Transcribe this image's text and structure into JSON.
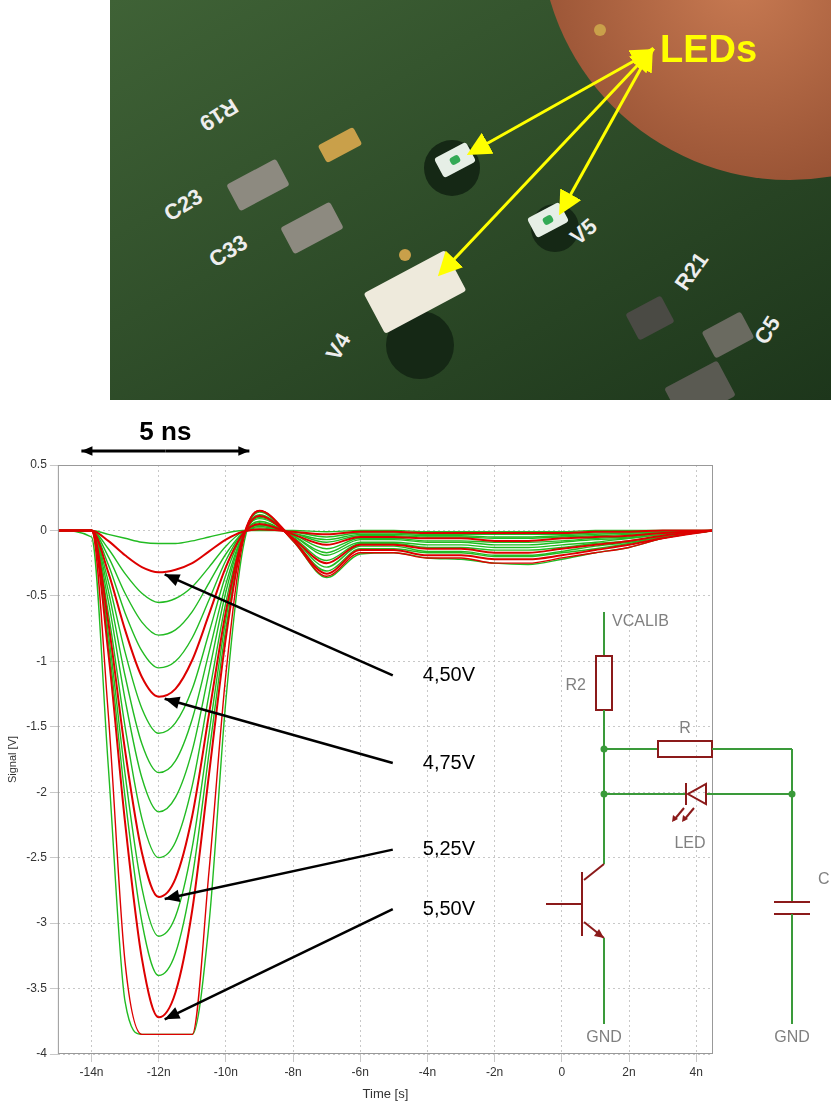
{
  "chart_data": {
    "type": "line",
    "x_label": "Time [s]",
    "y_label": "Signal [V]",
    "x": [
      -1.5e-08,
      -1.4e-08,
      -1.35e-08,
      -1.3e-08,
      -1.25e-08,
      -1.2e-08,
      -1.15e-08,
      -1.1e-08,
      -1.05e-08,
      -1e-08,
      -9.5e-09,
      -9e-09,
      -8e-09,
      -7e-09,
      -6e-09,
      -5e-09,
      -4e-09,
      -3e-09,
      -2e-09,
      -1e-09,
      0,
      1e-09,
      2e-09,
      3e-09,
      4.5e-09
    ],
    "xlim": [
      -1.5e-08,
      4.5e-09
    ],
    "xticks": [
      {
        "value": -1.4e-08,
        "label": "-14n"
      },
      {
        "value": -1.2e-08,
        "label": "-12n"
      },
      {
        "value": -1e-08,
        "label": "-10n"
      },
      {
        "value": -8e-09,
        "label": "-8n"
      },
      {
        "value": -6e-09,
        "label": "-6n"
      },
      {
        "value": -4e-09,
        "label": "-4n"
      },
      {
        "value": -2e-09,
        "label": "-2n"
      },
      0,
      {
        "value": 2e-09,
        "label": "2n"
      },
      {
        "value": 4e-09,
        "label": "4n"
      }
    ],
    "ylim": [
      -4,
      0.5
    ],
    "yticks": [
      -4,
      -3.5,
      -3,
      -2.5,
      -2,
      -1.5,
      -1,
      -0.5,
      0,
      0.5
    ],
    "grid": true,
    "series": [
      {
        "color": "#22bb22",
        "values": [
          0,
          0,
          -0.03,
          -0.06,
          -0.09,
          -0.1,
          -0.1,
          -0.08,
          -0.05,
          -0.02,
          0,
          0,
          0,
          -0.01,
          0,
          0,
          -0.01,
          -0.01,
          -0.01,
          -0.01,
          -0.01,
          0,
          0,
          0,
          0
        ]
      },
      {
        "name": "4,50V",
        "color": "#dd0000",
        "values": [
          0,
          0,
          -0.08,
          -0.19,
          -0.28,
          -0.32,
          -0.3,
          -0.25,
          -0.16,
          -0.07,
          -0.01,
          0.01,
          -0.01,
          -0.03,
          -0.01,
          -0.01,
          -0.02,
          -0.02,
          -0.02,
          -0.02,
          -0.02,
          -0.01,
          -0.01,
          0,
          0
        ]
      },
      {
        "color": "#22bb22",
        "values": [
          0,
          0,
          -0.14,
          -0.33,
          -0.48,
          -0.55,
          -0.52,
          -0.43,
          -0.28,
          -0.12,
          -0.01,
          0.02,
          -0.01,
          -0.05,
          -0.02,
          -0.02,
          -0.03,
          -0.03,
          -0.03,
          -0.03,
          -0.03,
          -0.02,
          -0.02,
          -0.01,
          0
        ]
      },
      {
        "color": "#22bb22",
        "values": [
          0,
          0,
          -0.2,
          -0.48,
          -0.7,
          -0.8,
          -0.76,
          -0.62,
          -0.4,
          -0.18,
          -0.02,
          0.03,
          -0.02,
          -0.07,
          -0.03,
          -0.03,
          -0.04,
          -0.04,
          -0.05,
          -0.05,
          -0.04,
          -0.03,
          -0.02,
          -0.01,
          0
        ]
      },
      {
        "color": "#22bb22",
        "values": [
          0,
          0,
          -0.26,
          -0.63,
          -0.92,
          -1.05,
          -1,
          -0.82,
          -0.53,
          -0.23,
          -0.02,
          0.04,
          -0.02,
          -0.09,
          -0.04,
          -0.04,
          -0.05,
          -0.05,
          -0.06,
          -0.06,
          -0.05,
          -0.04,
          -0.03,
          -0.02,
          0
        ]
      },
      {
        "name": "4,75V",
        "color": "#dd0000",
        "values": [
          0,
          0,
          -0.32,
          -0.76,
          -1.12,
          -1.27,
          -1.21,
          -0.99,
          -0.64,
          -0.28,
          -0.03,
          0.05,
          -0.03,
          -0.11,
          -0.05,
          -0.05,
          -0.06,
          -0.06,
          -0.08,
          -0.08,
          -0.06,
          -0.05,
          -0.04,
          -0.02,
          0
        ]
      },
      {
        "color": "#22bb22",
        "values": [
          0,
          0,
          -0.39,
          -0.93,
          -1.36,
          -1.55,
          -1.47,
          -1.21,
          -0.78,
          -0.34,
          -0.03,
          0.06,
          -0.03,
          -0.14,
          -0.06,
          -0.06,
          -0.08,
          -0.08,
          -0.09,
          -0.09,
          -0.08,
          -0.06,
          -0.05,
          -0.02,
          0
        ]
      },
      {
        "color": "#22bb22",
        "values": [
          0,
          0,
          -0.46,
          -1.11,
          -1.63,
          -1.85,
          -1.76,
          -1.44,
          -0.93,
          -0.41,
          -0.04,
          0.07,
          -0.04,
          -0.17,
          -0.07,
          -0.07,
          -0.09,
          -0.09,
          -0.11,
          -0.11,
          -0.09,
          -0.07,
          -0.06,
          -0.03,
          0
        ]
      },
      {
        "color": "#22bb22",
        "values": [
          0,
          0,
          -0.54,
          -1.29,
          -1.89,
          -2.15,
          -2.04,
          -1.68,
          -1.08,
          -0.47,
          -0.04,
          0.09,
          -0.04,
          -0.19,
          -0.09,
          -0.09,
          -0.11,
          -0.11,
          -0.13,
          -0.13,
          -0.11,
          -0.09,
          -0.06,
          -0.03,
          0
        ]
      },
      {
        "color": "#22bb22",
        "values": [
          0,
          0,
          -0.63,
          -1.5,
          -2.2,
          -2.5,
          -2.38,
          -1.95,
          -1.25,
          -0.55,
          -0.05,
          0.1,
          -0.05,
          -0.23,
          -0.1,
          -0.1,
          -0.13,
          -0.13,
          -0.15,
          -0.15,
          -0.13,
          -0.1,
          -0.08,
          -0.04,
          0
        ]
      },
      {
        "name": "5,25V",
        "color": "#dd0000",
        "values": [
          0,
          0,
          -0.7,
          -1.68,
          -2.46,
          -2.8,
          -2.66,
          -2.18,
          -1.4,
          -0.62,
          -0.06,
          0.11,
          -0.06,
          -0.25,
          -0.11,
          -0.11,
          -0.14,
          -0.14,
          -0.17,
          -0.17,
          -0.14,
          -0.11,
          -0.08,
          -0.04,
          0
        ]
      },
      {
        "color": "#22bb22",
        "values": [
          0,
          0,
          -0.78,
          -1.86,
          -2.73,
          -3.1,
          -2.95,
          -2.42,
          -1.55,
          -0.68,
          -0.06,
          0.12,
          -0.06,
          -0.28,
          -0.12,
          -0.12,
          -0.16,
          -0.16,
          -0.19,
          -0.19,
          -0.16,
          -0.12,
          -0.09,
          -0.05,
          0
        ]
      },
      {
        "color": "#22bb22",
        "values": [
          0,
          0,
          -0.85,
          -2.04,
          -2.99,
          -3.4,
          -3.23,
          -2.65,
          -1.7,
          -0.75,
          -0.07,
          0.14,
          -0.07,
          -0.31,
          -0.14,
          -0.14,
          -0.17,
          -0.17,
          -0.2,
          -0.2,
          -0.17,
          -0.14,
          -0.1,
          -0.05,
          0
        ]
      },
      {
        "name": "5,50V",
        "color": "#dd0000",
        "values": [
          0,
          0,
          -0.93,
          -2.23,
          -3.27,
          -3.72,
          -3.53,
          -2.9,
          -1.86,
          -0.82,
          -0.07,
          0.15,
          -0.07,
          -0.33,
          -0.15,
          -0.15,
          -0.19,
          -0.19,
          -0.22,
          -0.22,
          -0.19,
          -0.15,
          -0.11,
          -0.06,
          0
        ]
      },
      {
        "color": "#dd0000",
        "values": [
          0,
          0,
          -1.4,
          -3.3,
          -3.85,
          -3.85,
          -3.85,
          -3.85,
          -2.6,
          -1.1,
          -0.1,
          0.15,
          -0.08,
          -0.35,
          -0.17,
          -0.17,
          -0.21,
          -0.21,
          -0.25,
          -0.25,
          -0.21,
          -0.17,
          -0.13,
          -0.06,
          0
        ]
      },
      {
        "color": "#22bb22",
        "values": [
          0,
          -0.05,
          -1.8,
          -3.6,
          -3.85,
          -3.85,
          -3.85,
          -3.85,
          -3,
          -1.3,
          -0.15,
          0.15,
          -0.08,
          -0.36,
          -0.18,
          -0.17,
          -0.21,
          -0.22,
          -0.25,
          -0.26,
          -0.22,
          -0.17,
          -0.13,
          -0.06,
          0
        ]
      }
    ],
    "annotations": [
      {
        "text": "5 ns",
        "span": [
          -1.43e-08,
          -9.3e-09
        ]
      }
    ]
  },
  "photo": {
    "callout": "LEDs",
    "silkscreen": [
      "C23",
      "C33",
      "R19",
      "V5",
      "V4",
      "R21",
      "C5"
    ]
  },
  "schematic": {
    "supply": "VCALIB",
    "resistor_top": "R2",
    "resistor": "R",
    "led": "LED",
    "capacitor": "C",
    "ground": "GND"
  }
}
